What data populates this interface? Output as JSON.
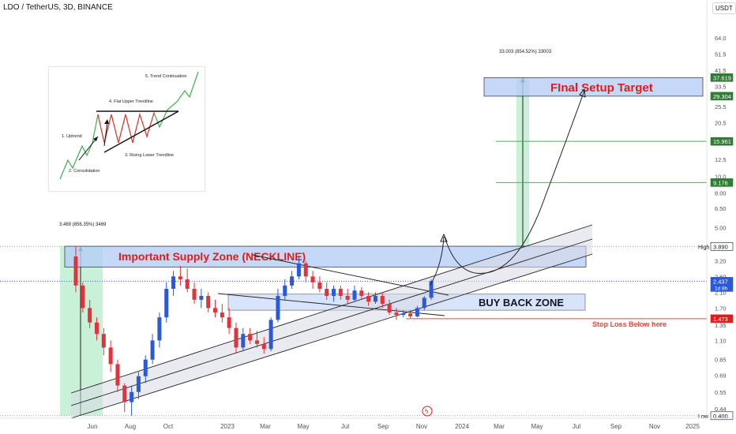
{
  "header": {
    "title": "LDO / TetherUS, 3D, BINANCE",
    "currency": "USDT"
  },
  "colors": {
    "supply_fill": "#b7cff7",
    "zone_border": "#131722",
    "target_text": "#e41b1b",
    "supply_text": "#e41b1b",
    "stop_line": "#ff3b3b",
    "green_level": "#4caf50",
    "up_candle": "#2a5ad8",
    "down_candle": "#e2323c",
    "green_area": "#b6ecc9"
  },
  "chart_data": {
    "type": "candlestick",
    "x": [
      "Jun",
      "Aug",
      "Oct",
      "2023",
      "Mar",
      "May",
      "Jul",
      "Sep",
      "Nov",
      "2024",
      "Mar",
      "May",
      "Jul",
      "Sep",
      "Nov",
      "2025"
    ],
    "y_scale": "log",
    "ylim": [
      0.4,
      64
    ],
    "y_ticks": [
      64.0,
      51.5,
      41.5,
      33.5,
      25.5,
      20.5,
      16.5,
      12.5,
      10.0,
      8.0,
      6.5,
      5.0,
      4.0,
      3.2,
      2.6,
      2.1,
      1.7,
      1.35,
      1.1,
      0.85,
      0.69,
      0.55,
      0.44
    ],
    "price_labels": [
      {
        "text": "37.619",
        "value": 37.619,
        "style": "green"
      },
      {
        "text": "29.304",
        "value": 29.304,
        "style": "green"
      },
      {
        "text": "15.961",
        "value": 15.961,
        "style": "green"
      },
      {
        "text": "9.176",
        "value": 9.176,
        "style": "green"
      },
      {
        "text": "3.890",
        "value": 3.89,
        "style": "white",
        "side": "High"
      },
      {
        "text": "2.437",
        "value": 2.437,
        "style": "blue",
        "sub": "1d 8h"
      },
      {
        "text": "1.473",
        "value": 1.473,
        "style": "red"
      },
      {
        "text": "0.400",
        "value": 0.4,
        "style": "white",
        "side": "Low"
      }
    ],
    "measure_left": "3.469 (856.35%) 3469",
    "measure_right": "33.003 (854.52%) 33003",
    "zones": {
      "target": {
        "label": "FInal Setup Target",
        "y_low": 29.304,
        "y_high": 37.619
      },
      "supply": {
        "label": "Important Supply Zone (NECKLINE)",
        "y_low": 2.95,
        "y_high": 3.9
      },
      "buyback": {
        "label": "BUY BACK ZONE",
        "y_low": 1.65,
        "y_high": 2.05
      }
    },
    "stop_loss": {
      "label": "Stop Loss Below here",
      "value": 1.473
    },
    "candles": [
      {
        "t": 0,
        "o": 3.4,
        "h": 3.9,
        "l": 2.1,
        "c": 2.3
      },
      {
        "t": 1,
        "o": 2.3,
        "h": 2.4,
        "l": 1.6,
        "c": 1.7
      },
      {
        "t": 2,
        "o": 1.7,
        "h": 1.9,
        "l": 1.3,
        "c": 1.4
      },
      {
        "t": 3,
        "o": 1.4,
        "h": 1.5,
        "l": 1.1,
        "c": 1.2
      },
      {
        "t": 4,
        "o": 1.2,
        "h": 1.3,
        "l": 0.9,
        "c": 1.0
      },
      {
        "t": 5,
        "o": 1.0,
        "h": 1.1,
        "l": 0.72,
        "c": 0.8
      },
      {
        "t": 6,
        "o": 0.8,
        "h": 0.85,
        "l": 0.55,
        "c": 0.6
      },
      {
        "t": 7,
        "o": 0.6,
        "h": 0.62,
        "l": 0.42,
        "c": 0.48
      },
      {
        "t": 8,
        "o": 0.48,
        "h": 0.6,
        "l": 0.4,
        "c": 0.55
      },
      {
        "t": 9,
        "o": 0.55,
        "h": 0.72,
        "l": 0.5,
        "c": 0.68
      },
      {
        "t": 10,
        "o": 0.68,
        "h": 0.9,
        "l": 0.62,
        "c": 0.85
      },
      {
        "t": 11,
        "o": 0.85,
        "h": 1.2,
        "l": 0.8,
        "c": 1.1
      },
      {
        "t": 12,
        "o": 1.1,
        "h": 1.6,
        "l": 1.0,
        "c": 1.5
      },
      {
        "t": 13,
        "o": 1.5,
        "h": 2.4,
        "l": 1.4,
        "c": 2.2
      },
      {
        "t": 14,
        "o": 2.2,
        "h": 2.8,
        "l": 2.0,
        "c": 2.6
      },
      {
        "t": 15,
        "o": 2.6,
        "h": 3.0,
        "l": 2.3,
        "c": 2.5
      },
      {
        "t": 16,
        "o": 2.5,
        "h": 2.9,
        "l": 2.1,
        "c": 2.2
      },
      {
        "t": 17,
        "o": 2.2,
        "h": 2.4,
        "l": 1.8,
        "c": 1.9
      },
      {
        "t": 18,
        "o": 1.9,
        "h": 2.2,
        "l": 1.7,
        "c": 2.0
      },
      {
        "t": 19,
        "o": 2.0,
        "h": 2.1,
        "l": 1.6,
        "c": 1.7
      },
      {
        "t": 20,
        "o": 1.7,
        "h": 1.9,
        "l": 1.5,
        "c": 1.6
      },
      {
        "t": 21,
        "o": 1.6,
        "h": 1.8,
        "l": 1.4,
        "c": 1.5
      },
      {
        "t": 22,
        "o": 1.5,
        "h": 1.7,
        "l": 1.2,
        "c": 1.3
      },
      {
        "t": 23,
        "o": 1.3,
        "h": 1.4,
        "l": 0.92,
        "c": 1.0
      },
      {
        "t": 24,
        "o": 1.0,
        "h": 1.3,
        "l": 0.95,
        "c": 1.2
      },
      {
        "t": 25,
        "o": 1.2,
        "h": 1.3,
        "l": 1.05,
        "c": 1.1
      },
      {
        "t": 26,
        "o": 1.1,
        "h": 1.25,
        "l": 1.0,
        "c": 1.05
      },
      {
        "t": 27,
        "o": 1.05,
        "h": 1.15,
        "l": 0.92,
        "c": 0.98
      },
      {
        "t": 28,
        "o": 0.98,
        "h": 1.5,
        "l": 0.95,
        "c": 1.45
      },
      {
        "t": 29,
        "o": 1.45,
        "h": 2.2,
        "l": 1.4,
        "c": 2.0
      },
      {
        "t": 30,
        "o": 2.0,
        "h": 2.5,
        "l": 1.9,
        "c": 2.3
      },
      {
        "t": 31,
        "o": 2.3,
        "h": 2.8,
        "l": 2.2,
        "c": 2.6
      },
      {
        "t": 32,
        "o": 2.6,
        "h": 3.4,
        "l": 2.5,
        "c": 3.1
      },
      {
        "t": 33,
        "o": 3.1,
        "h": 3.2,
        "l": 2.4,
        "c": 2.6
      },
      {
        "t": 34,
        "o": 2.6,
        "h": 2.8,
        "l": 2.2,
        "c": 2.4
      },
      {
        "t": 35,
        "o": 2.4,
        "h": 2.6,
        "l": 2.1,
        "c": 2.2
      },
      {
        "t": 36,
        "o": 2.2,
        "h": 2.4,
        "l": 1.9,
        "c": 2.0
      },
      {
        "t": 37,
        "o": 2.0,
        "h": 2.3,
        "l": 1.85,
        "c": 2.2
      },
      {
        "t": 38,
        "o": 2.2,
        "h": 2.3,
        "l": 1.9,
        "c": 2.0
      },
      {
        "t": 39,
        "o": 2.0,
        "h": 2.2,
        "l": 1.8,
        "c": 1.9
      },
      {
        "t": 40,
        "o": 1.9,
        "h": 2.3,
        "l": 1.85,
        "c": 2.15
      },
      {
        "t": 41,
        "o": 2.15,
        "h": 2.25,
        "l": 1.9,
        "c": 2.0
      },
      {
        "t": 42,
        "o": 2.0,
        "h": 2.1,
        "l": 1.75,
        "c": 1.85
      },
      {
        "t": 43,
        "o": 1.85,
        "h": 2.1,
        "l": 1.8,
        "c": 2.0
      },
      {
        "t": 44,
        "o": 2.0,
        "h": 2.1,
        "l": 1.7,
        "c": 1.8
      },
      {
        "t": 45,
        "o": 1.8,
        "h": 1.9,
        "l": 1.55,
        "c": 1.6
      },
      {
        "t": 46,
        "o": 1.6,
        "h": 1.7,
        "l": 1.45,
        "c": 1.55
      },
      {
        "t": 47,
        "o": 1.55,
        "h": 1.65,
        "l": 1.5,
        "c": 1.58
      },
      {
        "t": 48,
        "o": 1.58,
        "h": 1.65,
        "l": 1.48,
        "c": 1.52
      },
      {
        "t": 49,
        "o": 1.52,
        "h": 1.75,
        "l": 1.5,
        "c": 1.7
      },
      {
        "t": 50,
        "o": 1.7,
        "h": 2.0,
        "l": 1.65,
        "c": 1.95
      },
      {
        "t": 51,
        "o": 1.95,
        "h": 2.5,
        "l": 1.9,
        "c": 2.44
      }
    ]
  },
  "inset": {
    "labels": [
      "5. Trend Continuation",
      "4. Flat Upper Trendline",
      "1. Uptrend",
      "2. Consolidation",
      "3. Rising Lower Trendline"
    ]
  }
}
